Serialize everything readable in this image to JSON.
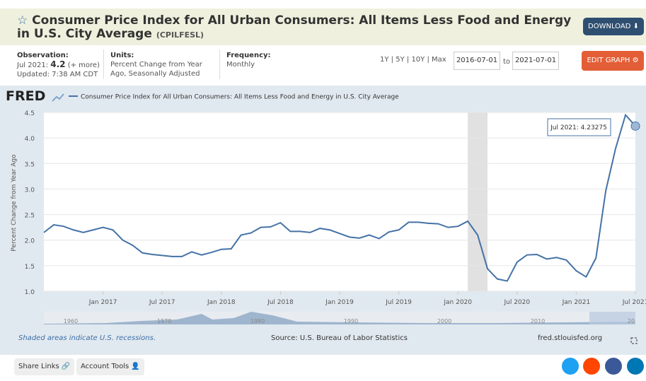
{
  "header": {
    "title": "Consumer Price Index for All Urban Consumers: All Items Less Food and Energy in U.S. City Average",
    "series_id": "(CPILFESL)",
    "download": "DOWNLOAD"
  },
  "meta": {
    "observation_label": "Observation:",
    "observation_date": "Jul 2021:",
    "observation_value": "4.2",
    "observation_more": "(+ more)",
    "updated": "Updated: 7:38 AM CDT",
    "units_label": "Units:",
    "units": "Percent Change from Year Ago, Seasonally Adjusted",
    "frequency_label": "Frequency:",
    "frequency": "Monthly"
  },
  "controls": {
    "ranges": [
      "1Y",
      "5Y",
      "10Y",
      "Max"
    ],
    "from": "2016-07-01",
    "to_label": "to",
    "to": "2021-07-01",
    "edit": "EDIT GRAPH"
  },
  "chart_data": {
    "type": "line",
    "logo": "FRED",
    "series": [
      {
        "name": "Consumer Price Index for All Urban Consumers: All Items Less Food and Energy in U.S. City Average",
        "color": "#4572a7",
        "values": [
          2.15,
          2.3,
          2.27,
          2.2,
          2.15,
          2.2,
          2.25,
          2.2,
          2.0,
          1.9,
          1.75,
          1.72,
          1.7,
          1.68,
          1.68,
          1.77,
          1.71,
          1.76,
          1.82,
          1.83,
          2.1,
          2.14,
          2.25,
          2.26,
          2.34,
          2.17,
          2.17,
          2.15,
          2.23,
          2.2,
          2.13,
          2.06,
          2.04,
          2.1,
          2.03,
          2.16,
          2.2,
          2.35,
          2.35,
          2.33,
          2.32,
          2.25,
          2.27,
          2.37,
          2.1,
          1.44,
          1.24,
          1.2,
          1.57,
          1.71,
          1.72,
          1.63,
          1.66,
          1.61,
          1.4,
          1.28,
          1.65,
          2.97,
          3.8,
          4.45,
          4.23275
        ]
      }
    ],
    "categories": [
      "Jul 2016",
      "Aug 2016",
      "Sep 2016",
      "Oct 2016",
      "Nov 2016",
      "Dec 2016",
      "Jan 2017",
      "Feb 2017",
      "Mar 2017",
      "Apr 2017",
      "May 2017",
      "Jun 2017",
      "Jul 2017",
      "Aug 2017",
      "Sep 2017",
      "Oct 2017",
      "Nov 2017",
      "Dec 2017",
      "Jan 2018",
      "Feb 2018",
      "Mar 2018",
      "Apr 2018",
      "May 2018",
      "Jun 2018",
      "Jul 2018",
      "Aug 2018",
      "Sep 2018",
      "Oct 2018",
      "Nov 2018",
      "Dec 2018",
      "Jan 2019",
      "Feb 2019",
      "Mar 2019",
      "Apr 2019",
      "May 2019",
      "Jun 2019",
      "Jul 2019",
      "Aug 2019",
      "Sep 2019",
      "Oct 2019",
      "Nov 2019",
      "Dec 2019",
      "Jan 2020",
      "Feb 2020",
      "Mar 2020",
      "Apr 2020",
      "May 2020",
      "Jun 2020",
      "Jul 2020",
      "Aug 2020",
      "Sep 2020",
      "Oct 2020",
      "Nov 2020",
      "Dec 2020",
      "Jan 2021",
      "Feb 2021",
      "Mar 2021",
      "Apr 2021",
      "May 2021",
      "Jun 2021",
      "Jul 2021"
    ],
    "xticks": [
      "Jan 2017",
      "Jul 2017",
      "Jan 2018",
      "Jul 2018",
      "Jan 2019",
      "Jul 2019",
      "Jan 2020",
      "Jul 2020",
      "Jan 2021",
      "Jul 2021"
    ],
    "ylabel": "Percent Change from Year Ago",
    "ylim": [
      1.0,
      4.5
    ],
    "yticks": [
      {
        "value": 1.0,
        "label": "1.0"
      },
      1.5,
      {
        "value": 2.0,
        "label": "2.0"
      },
      2.5,
      {
        "value": 3.0,
        "label": "3.0"
      },
      3.5,
      {
        "value": 4.0,
        "label": "4.0"
      },
      4.5
    ],
    "grid": true,
    "recession": {
      "start": "Feb 2020",
      "end": "Apr 2020"
    },
    "tooltip": "Jul 2021: 4.23275",
    "navigator_labels": [
      "1960",
      "1970",
      "1980",
      "1990",
      "2000",
      "2010",
      "20"
    ]
  },
  "footer": {
    "recessions_note": "Shaded areas indicate U.S. recessions.",
    "source": "Source: U.S. Bureau of Labor Statistics",
    "site": "fred.stlouisfed.org"
  },
  "toolbar": {
    "share": "Share Links",
    "account": "Account Tools"
  }
}
